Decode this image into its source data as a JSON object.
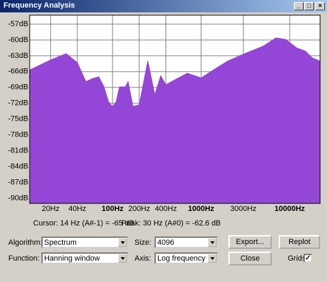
{
  "window": {
    "title": "Frequency Analysis"
  },
  "chart_data": {
    "type": "area",
    "log_x": true,
    "grid": true,
    "color": "#9446d6",
    "x": [
      11.6,
      20,
      30,
      40,
      50,
      60,
      70,
      80,
      90,
      100,
      110,
      120,
      140,
      150,
      170,
      200,
      250,
      300,
      350,
      400,
      500,
      700,
      1000,
      1500,
      2000,
      3000,
      5000,
      7000,
      9000,
      12000,
      15000,
      18000,
      22050
    ],
    "values": [
      -65.7,
      -63.8,
      -62.6,
      -64.3,
      -67.9,
      -67.3,
      -67,
      -68.9,
      -71.7,
      -72.7,
      -71.7,
      -68.9,
      -68.9,
      -67.9,
      -72.6,
      -72.3,
      -64,
      -70.4,
      -66.8,
      -68.5,
      -67.6,
      -66.3,
      -67.2,
      -65.3,
      -64,
      -62.7,
      -61.2,
      -59.6,
      -59.9,
      -61.5,
      -62.1,
      -63.4,
      -64
    ],
    "xlim": [
      11.6,
      22050
    ],
    "ylim": [
      -91,
      -55.3
    ],
    "xticks": [
      {
        "value": 20,
        "label": "20Hz"
      },
      {
        "value": 40,
        "label": "40Hz"
      },
      {
        "value": 100,
        "label": "100Hz"
      },
      {
        "value": 200,
        "label": "200Hz"
      },
      {
        "value": 400,
        "label": "400Hz"
      },
      {
        "value": 1000,
        "label": "1000Hz"
      },
      {
        "value": 3000,
        "label": "3000Hz"
      },
      {
        "value": 10000,
        "label": "10000Hz"
      }
    ],
    "yticks": [
      {
        "value": -57,
        "label": "-57dB"
      },
      {
        "value": -60,
        "label": "-60dB"
      },
      {
        "value": -63,
        "label": "-63dB"
      },
      {
        "value": -66,
        "label": "-66dB"
      },
      {
        "value": -69,
        "label": "-69dB"
      },
      {
        "value": -72,
        "label": "-72dB"
      },
      {
        "value": -75,
        "label": "-75dB"
      },
      {
        "value": -78,
        "label": "-78dB"
      },
      {
        "value": -81,
        "label": "-81dB"
      },
      {
        "value": -84,
        "label": "-84dB"
      },
      {
        "value": -87,
        "label": "-87dB"
      },
      {
        "value": -90,
        "label": "-90dB"
      }
    ]
  },
  "status": {
    "cursor": "Cursor: 14 Hz (A#-1) = -65 dB",
    "peak": "Peak: 30 Hz (A#0) = -62.6 dB"
  },
  "controls": {
    "algorithm_label": "Algorithm:",
    "algorithm": "Spectrum",
    "size_label": "Size:",
    "size": "4096",
    "function_label": "Function:",
    "function": "Hanning window",
    "axis_label": "Axis:",
    "axis": "Log frequency",
    "export": "Export...",
    "replot": "Replot",
    "close": "Close",
    "grids_label": "Grids",
    "grids_checked": true
  }
}
